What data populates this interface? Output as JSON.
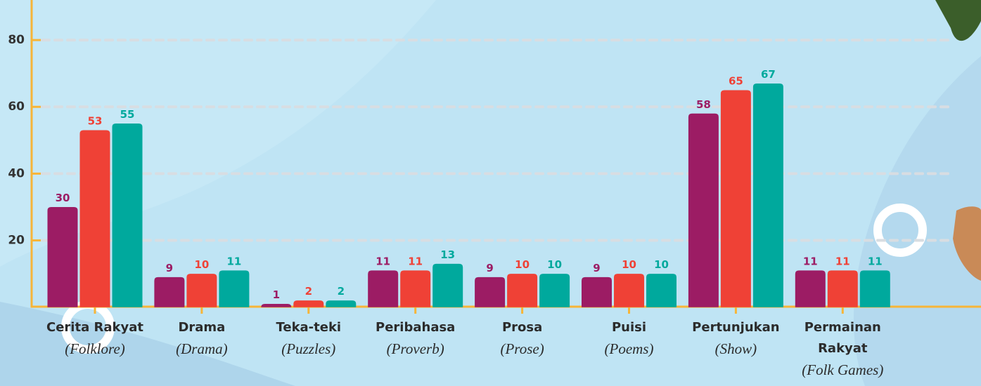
{
  "chart_data": {
    "type": "bar",
    "categories": [
      "Cerita Rakyat",
      "Drama",
      "Teka-teki",
      "Peribahasa",
      "Prosa",
      "Puisi",
      "Pertunjukan",
      "Permainan Rakyat"
    ],
    "category_translations": [
      "(Folklore)",
      "(Drama)",
      "(Puzzles)",
      "(Proverb)",
      "(Prose)",
      "(Poems)",
      "(Show)",
      "(Folk Games)"
    ],
    "series": [
      {
        "color": "#9c1c64",
        "values": [
          30,
          9,
          1,
          11,
          9,
          9,
          58,
          11
        ]
      },
      {
        "color": "#ef4136",
        "values": [
          53,
          10,
          2,
          11,
          10,
          10,
          65,
          11
        ]
      },
      {
        "color": "#00a99d",
        "values": [
          55,
          11,
          2,
          13,
          10,
          10,
          67,
          11
        ]
      }
    ],
    "ylim": [
      0,
      92
    ],
    "yticks": [
      20,
      40,
      60,
      80
    ],
    "grid": true
  }
}
